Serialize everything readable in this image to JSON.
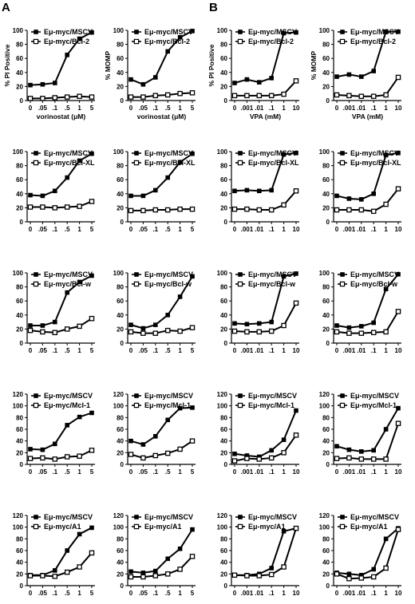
{
  "panel_labels": [
    "A",
    "B"
  ],
  "chart_data": [
    {
      "type": "line",
      "panel": "A",
      "row": 0,
      "col": 0,
      "ylabel": "% PI Positive",
      "xlabel": "vorinostat (μM)",
      "categories": [
        "0",
        ".05",
        ".1",
        ".5",
        "1",
        "5"
      ],
      "ylim": [
        0,
        100
      ],
      "yticks": [
        0,
        20,
        40,
        60,
        80,
        100
      ],
      "series": [
        {
          "name": "Eμ-myc/MSCV",
          "marker": "filled",
          "values": [
            22,
            23,
            25,
            65,
            88,
            97
          ]
        },
        {
          "name": "Eμ-myc/Bcl-2",
          "marker": "open",
          "values": [
            3,
            3,
            4,
            5,
            6,
            5
          ]
        }
      ]
    },
    {
      "type": "line",
      "panel": "A",
      "row": 0,
      "col": 1,
      "ylabel": "% MOMP",
      "xlabel": "vorinostat (μM)",
      "categories": [
        "0",
        ".05",
        ".1",
        ".5",
        "1",
        "5"
      ],
      "ylim": [
        0,
        100
      ],
      "yticks": [
        0,
        20,
        40,
        60,
        80,
        100
      ],
      "series": [
        {
          "name": "Eμ-myc/MSCV",
          "marker": "filled",
          "values": [
            30,
            23,
            33,
            70,
            90,
            99
          ]
        },
        {
          "name": "Eμ-myc/Bcl-2",
          "marker": "open",
          "values": [
            5,
            5,
            7,
            8,
            10,
            11
          ]
        }
      ]
    },
    {
      "type": "line",
      "panel": "B",
      "row": 0,
      "col": 0,
      "ylabel": "% PI Positive",
      "xlabel": "VPA (mM)",
      "categories": [
        "0",
        ".001",
        ".01",
        ".1",
        "1",
        "10"
      ],
      "ylim": [
        0,
        100
      ],
      "yticks": [
        0,
        20,
        40,
        60,
        80,
        100
      ],
      "series": [
        {
          "name": "Eμ-myc/MSCV",
          "marker": "filled",
          "values": [
            25,
            30,
            26,
            32,
            96,
            97
          ]
        },
        {
          "name": "Eμ-myc/Bcl-2",
          "marker": "open",
          "values": [
            7,
            7,
            7,
            7,
            9,
            28
          ]
        }
      ]
    },
    {
      "type": "line",
      "panel": "B",
      "row": 0,
      "col": 1,
      "ylabel": "% MOMP",
      "xlabel": "VPA (mM)",
      "categories": [
        "0",
        ".001",
        ".01",
        ".1",
        "1",
        "10"
      ],
      "ylim": [
        0,
        100
      ],
      "yticks": [
        0,
        20,
        40,
        60,
        80,
        100
      ],
      "series": [
        {
          "name": "Eμ-myc/MSCV",
          "marker": "filled",
          "values": [
            34,
            37,
            34,
            42,
            98,
            98
          ]
        },
        {
          "name": "Eμ-myc/Bcl-2",
          "marker": "open",
          "values": [
            8,
            7,
            6,
            6,
            8,
            33
          ]
        }
      ]
    },
    {
      "type": "line",
      "panel": "A",
      "row": 1,
      "col": 0,
      "ylabel": "",
      "xlabel": "",
      "categories": [
        "0",
        ".05",
        ".1",
        ".5",
        "1",
        "5"
      ],
      "ylim": [
        0,
        100
      ],
      "yticks": [
        0,
        20,
        40,
        60,
        80,
        100
      ],
      "series": [
        {
          "name": "Eμ-myc/MSCV",
          "marker": "filled",
          "values": [
            38,
            37,
            44,
            63,
            87,
            97
          ]
        },
        {
          "name": "Eμ-myc/Bcl-XL",
          "marker": "open",
          "values": [
            21,
            21,
            20,
            21,
            22,
            29
          ]
        }
      ]
    },
    {
      "type": "line",
      "panel": "A",
      "row": 1,
      "col": 1,
      "ylabel": "",
      "xlabel": "",
      "categories": [
        "0",
        ".05",
        ".1",
        ".5",
        "1",
        "5"
      ],
      "ylim": [
        0,
        100
      ],
      "yticks": [
        0,
        20,
        40,
        60,
        80,
        100
      ],
      "series": [
        {
          "name": "Eμ-myc/MSCV",
          "marker": "filled",
          "values": [
            37,
            37,
            45,
            63,
            85,
            97
          ]
        },
        {
          "name": "Eμ-myc/Bcl-XL",
          "marker": "open",
          "values": [
            16,
            16,
            17,
            17,
            18,
            18
          ]
        }
      ]
    },
    {
      "type": "line",
      "panel": "B",
      "row": 1,
      "col": 0,
      "ylabel": "",
      "xlabel": "",
      "categories": [
        "0",
        ".001",
        ".01",
        ".1",
        "1",
        "10"
      ],
      "ylim": [
        0,
        100
      ],
      "yticks": [
        0,
        20,
        40,
        60,
        80,
        100
      ],
      "series": [
        {
          "name": "Eμ-myc/MSCV",
          "marker": "filled",
          "values": [
            44,
            45,
            44,
            45,
            96,
            98
          ]
        },
        {
          "name": "Eμ-myc/Bcl-XL",
          "marker": "open",
          "values": [
            18,
            18,
            17,
            17,
            24,
            44
          ]
        }
      ]
    },
    {
      "type": "line",
      "panel": "B",
      "row": 1,
      "col": 1,
      "ylabel": "",
      "xlabel": "",
      "categories": [
        "0",
        ".001",
        ".01",
        ".1",
        "1",
        "10"
      ],
      "ylim": [
        0,
        100
      ],
      "yticks": [
        0,
        20,
        40,
        60,
        80,
        100
      ],
      "series": [
        {
          "name": "Eμ-myc/MSCV",
          "marker": "filled",
          "values": [
            37,
            33,
            32,
            40,
            95,
            98
          ]
        },
        {
          "name": "Eμ-myc/Bcl-XL",
          "marker": "open",
          "values": [
            17,
            17,
            17,
            15,
            25,
            47
          ]
        }
      ]
    },
    {
      "type": "line",
      "panel": "A",
      "row": 2,
      "col": 0,
      "ylabel": "",
      "xlabel": "",
      "categories": [
        "0",
        ".05",
        ".1",
        ".5",
        "1",
        "5"
      ],
      "ylim": [
        0,
        100
      ],
      "yticks": [
        0,
        20,
        40,
        60,
        80,
        100
      ],
      "series": [
        {
          "name": "Eμ-myc/MSCV",
          "marker": "filled",
          "values": [
            25,
            25,
            30,
            72,
            87,
            96
          ]
        },
        {
          "name": "Eμ-myc/Bcl-w",
          "marker": "open",
          "values": [
            18,
            16,
            15,
            20,
            24,
            35
          ]
        }
      ]
    },
    {
      "type": "line",
      "panel": "A",
      "row": 2,
      "col": 1,
      "ylabel": "",
      "xlabel": "",
      "categories": [
        "0",
        ".05",
        ".1",
        ".5",
        "1",
        "5"
      ],
      "ylim": [
        0,
        100
      ],
      "yticks": [
        0,
        20,
        40,
        60,
        80,
        100
      ],
      "series": [
        {
          "name": "Eμ-myc/MSCV",
          "marker": "filled",
          "values": [
            26,
            21,
            26,
            40,
            66,
            95
          ]
        },
        {
          "name": "Eμ-myc/Bcl-w",
          "marker": "open",
          "values": [
            16,
            14,
            14,
            18,
            17,
            22
          ]
        }
      ]
    },
    {
      "type": "line",
      "panel": "B",
      "row": 2,
      "col": 0,
      "ylabel": "",
      "xlabel": "",
      "categories": [
        "0",
        ".001",
        ".01",
        ".1",
        "1",
        "10"
      ],
      "ylim": [
        0,
        100
      ],
      "yticks": [
        0,
        20,
        40,
        60,
        80,
        100
      ],
      "series": [
        {
          "name": "Eμ-myc/MSCV",
          "marker": "filled",
          "values": [
            28,
            27,
            28,
            30,
            95,
            99
          ]
        },
        {
          "name": "Eμ-myc/Bcl-w",
          "marker": "open",
          "values": [
            17,
            16,
            16,
            17,
            25,
            57
          ]
        }
      ]
    },
    {
      "type": "line",
      "panel": "B",
      "row": 2,
      "col": 1,
      "ylabel": "",
      "xlabel": "",
      "categories": [
        "0",
        ".001",
        ".01",
        ".1",
        "1",
        "10"
      ],
      "ylim": [
        0,
        100
      ],
      "yticks": [
        0,
        20,
        40,
        60,
        80,
        100
      ],
      "series": [
        {
          "name": "Eμ-myc/MSCV",
          "marker": "filled",
          "values": [
            25,
            22,
            24,
            29,
            77,
            98
          ]
        },
        {
          "name": "Eμ-myc/Bcl-w",
          "marker": "open",
          "values": [
            16,
            14,
            14,
            15,
            16,
            45
          ]
        }
      ]
    },
    {
      "type": "line",
      "panel": "A",
      "row": 3,
      "col": 0,
      "ylabel": "",
      "xlabel": "",
      "categories": [
        "0",
        ".05",
        ".1",
        ".5",
        "1",
        "5"
      ],
      "ylim": [
        0,
        120
      ],
      "yticks": [
        0,
        20,
        40,
        60,
        80,
        100,
        120
      ],
      "series": [
        {
          "name": "Eμ-myc/MSCV",
          "marker": "filled",
          "values": [
            26,
            25,
            35,
            67,
            81,
            88
          ]
        },
        {
          "name": "Eμ-myc/Mcl-1",
          "marker": "open",
          "values": [
            10,
            11,
            9,
            13,
            14,
            24
          ]
        }
      ]
    },
    {
      "type": "line",
      "panel": "A",
      "row": 3,
      "col": 1,
      "ylabel": "",
      "xlabel": "",
      "categories": [
        "0",
        ".05",
        ".1",
        ".5",
        "1",
        "5"
      ],
      "ylim": [
        0,
        120
      ],
      "yticks": [
        0,
        20,
        40,
        60,
        80,
        100,
        120
      ],
      "series": [
        {
          "name": "Eμ-myc/MSCV",
          "marker": "filled",
          "values": [
            40,
            34,
            48,
            76,
            96,
            97
          ]
        },
        {
          "name": "Eμ-myc/Mcl-1",
          "marker": "open",
          "values": [
            17,
            11,
            15,
            19,
            26,
            40
          ]
        }
      ]
    },
    {
      "type": "line",
      "panel": "B",
      "row": 3,
      "col": 0,
      "ylabel": "",
      "xlabel": "",
      "categories": [
        "0",
        ".001",
        ".01",
        ".1",
        "1",
        "10"
      ],
      "ylim": [
        0,
        120
      ],
      "yticks": [
        0,
        20,
        40,
        60,
        80,
        100,
        120
      ],
      "series": [
        {
          "name": "Eμ-myc/MSCV",
          "marker": "filled",
          "values": [
            18,
            15,
            13,
            24,
            42,
            92
          ]
        },
        {
          "name": "Eμ-myc/Mcl-1",
          "marker": "open",
          "values": [
            6,
            10,
            9,
            11,
            20,
            50
          ]
        }
      ]
    },
    {
      "type": "line",
      "panel": "B",
      "row": 3,
      "col": 1,
      "ylabel": "",
      "xlabel": "",
      "categories": [
        "0",
        ".001",
        ".01",
        ".1",
        "1",
        "10"
      ],
      "ylim": [
        0,
        120
      ],
      "yticks": [
        0,
        20,
        40,
        60,
        80,
        100,
        120
      ],
      "series": [
        {
          "name": "Eμ-myc/MSCV",
          "marker": "filled",
          "values": [
            31,
            25,
            22,
            24,
            60,
            96
          ]
        },
        {
          "name": "Eμ-myc/Mcl-1",
          "marker": "open",
          "values": [
            10,
            11,
            9,
            9,
            9,
            70
          ]
        }
      ]
    },
    {
      "type": "line",
      "panel": "A",
      "row": 4,
      "col": 0,
      "ylabel": "",
      "xlabel": "",
      "categories": [
        "0",
        ".05",
        ".1",
        ".5",
        "1",
        "5"
      ],
      "ylim": [
        0,
        120
      ],
      "yticks": [
        0,
        20,
        40,
        60,
        80,
        100,
        120
      ],
      "series": [
        {
          "name": "Eμ-myc/MSCV",
          "marker": "filled",
          "values": [
            18,
            18,
            26,
            60,
            88,
            99
          ]
        },
        {
          "name": "Eμ-myc/A1",
          "marker": "open",
          "values": [
            17,
            17,
            16,
            23,
            32,
            56
          ]
        }
      ]
    },
    {
      "type": "line",
      "panel": "A",
      "row": 4,
      "col": 1,
      "ylabel": "",
      "xlabel": "",
      "categories": [
        "0",
        ".05",
        ".1",
        ".5",
        "1",
        "5"
      ],
      "ylim": [
        0,
        120
      ],
      "yticks": [
        0,
        20,
        40,
        60,
        80,
        100,
        120
      ],
      "series": [
        {
          "name": "Eμ-myc/MSCV",
          "marker": "filled",
          "values": [
            24,
            22,
            25,
            46,
            63,
            96
          ]
        },
        {
          "name": "Eμ-myc/A1",
          "marker": "open",
          "values": [
            15,
            15,
            17,
            20,
            28,
            50
          ]
        }
      ]
    },
    {
      "type": "line",
      "panel": "B",
      "row": 4,
      "col": 0,
      "ylabel": "",
      "xlabel": "",
      "categories": [
        "0",
        ".001",
        ".01",
        ".1",
        "1",
        "10"
      ],
      "ylim": [
        0,
        120
      ],
      "yticks": [
        0,
        20,
        40,
        60,
        80,
        100,
        120
      ],
      "series": [
        {
          "name": "Eμ-myc/MSCV",
          "marker": "filled",
          "values": [
            18,
            18,
            20,
            30,
            93,
            98
          ]
        },
        {
          "name": "Eμ-myc/A1",
          "marker": "open",
          "values": [
            18,
            17,
            17,
            19,
            32,
            98
          ]
        }
      ]
    },
    {
      "type": "line",
      "panel": "B",
      "row": 4,
      "col": 1,
      "ylabel": "",
      "xlabel": "",
      "categories": [
        "0",
        ".001",
        ".01",
        ".1",
        "1",
        "10"
      ],
      "ylim": [
        0,
        120
      ],
      "yticks": [
        0,
        20,
        40,
        60,
        80,
        100,
        120
      ],
      "series": [
        {
          "name": "Eμ-myc/MSCV",
          "marker": "filled",
          "values": [
            22,
            20,
            18,
            28,
            80,
            98
          ]
        },
        {
          "name": "Eμ-myc/A1",
          "marker": "open",
          "values": [
            20,
            12,
            13,
            15,
            30,
            96
          ]
        }
      ]
    }
  ]
}
